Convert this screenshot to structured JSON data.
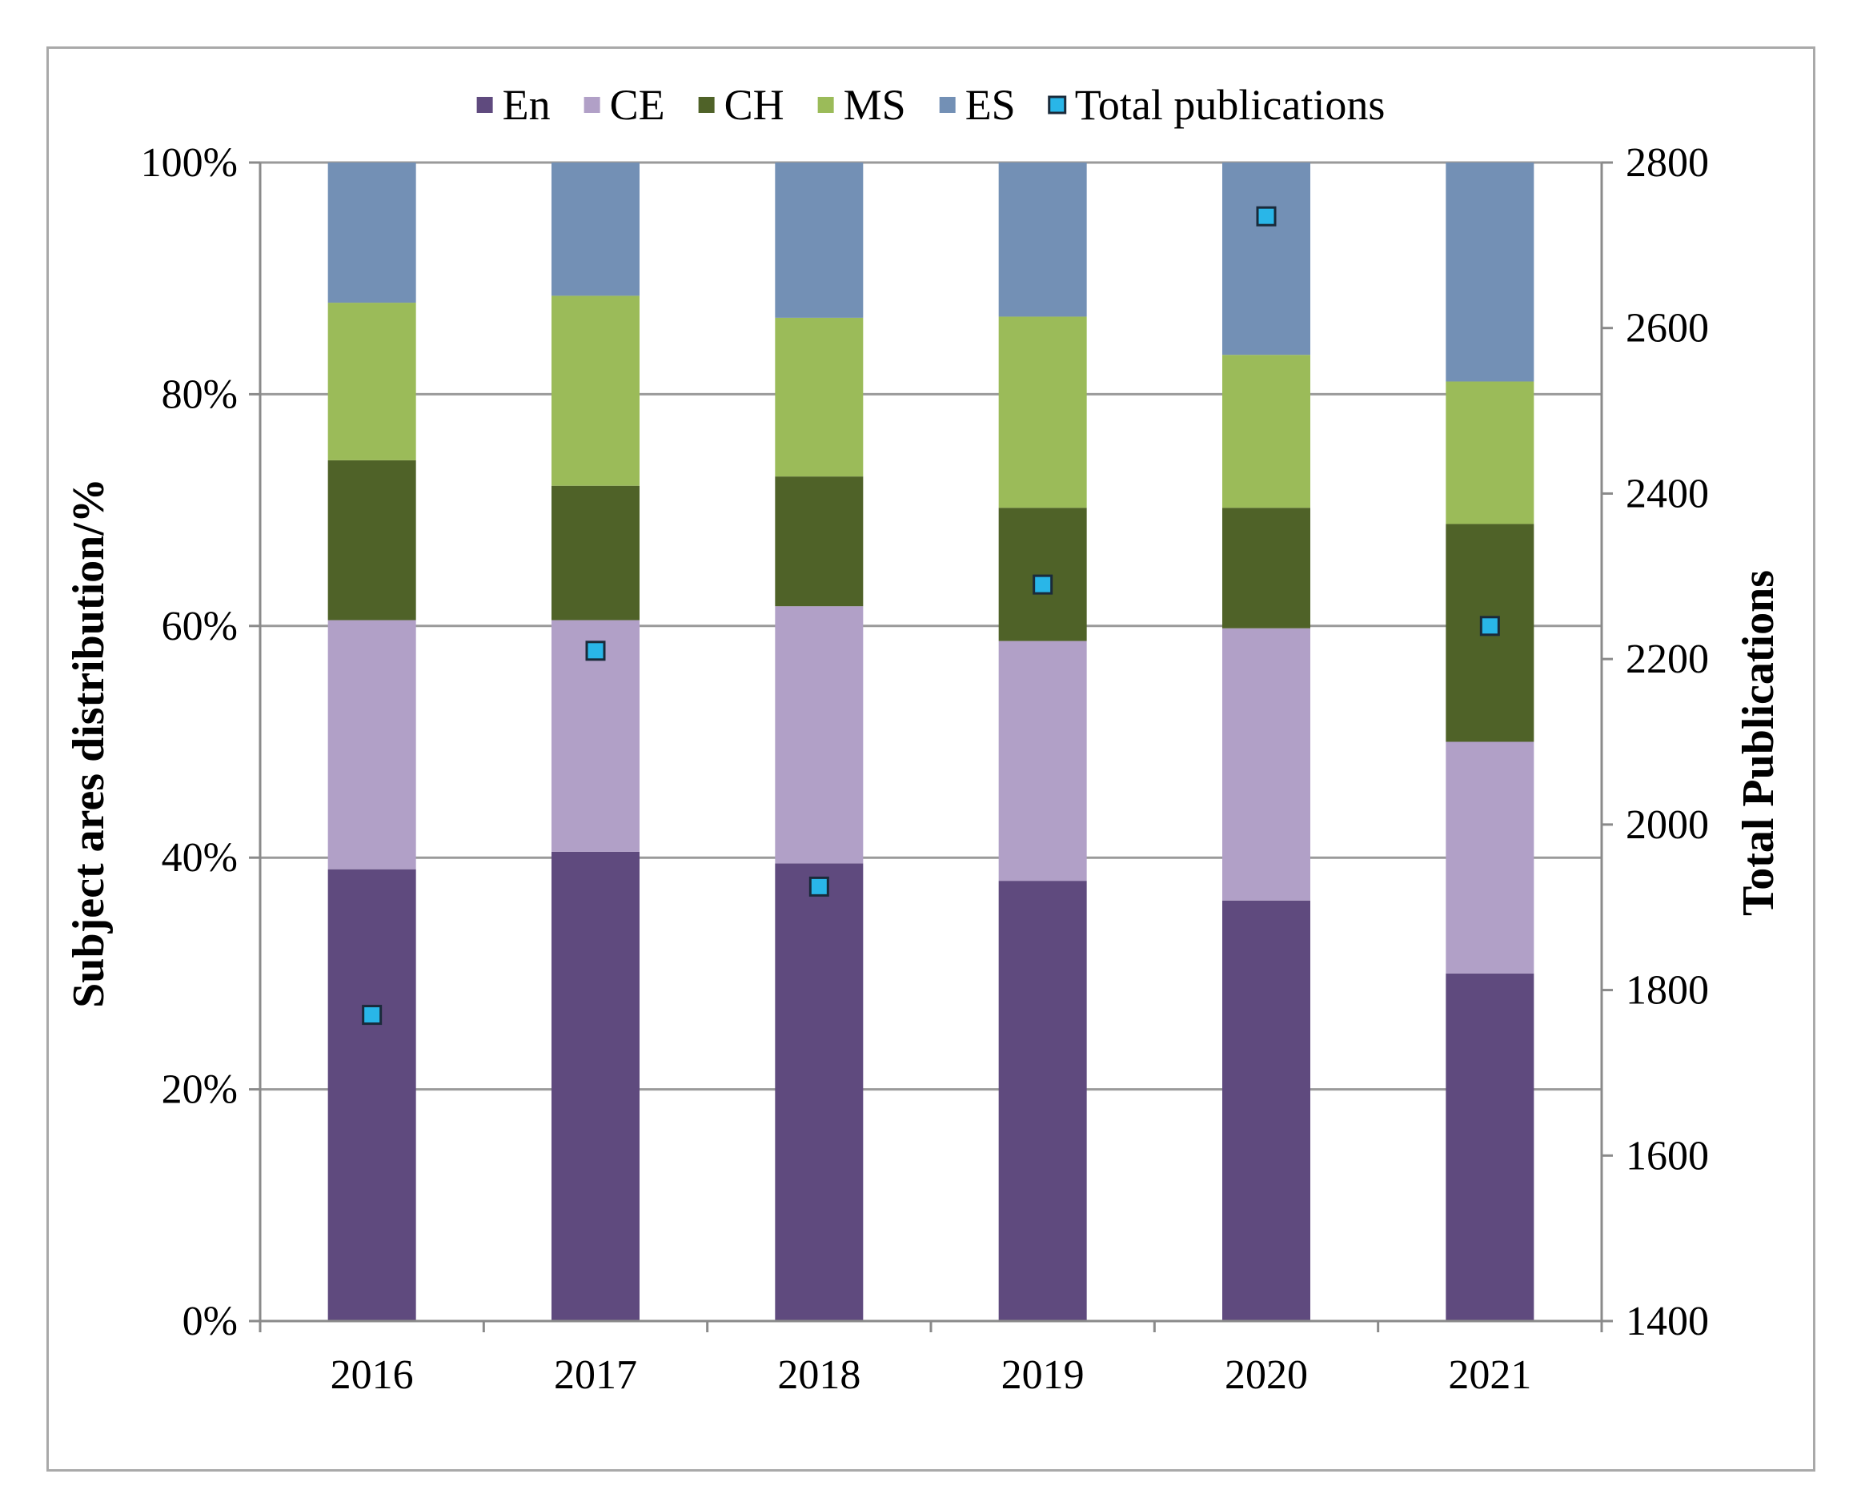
{
  "chart_data": {
    "type": "bar",
    "stacked": true,
    "normalized": true,
    "categories": [
      "2016",
      "2017",
      "2018",
      "2019",
      "2020",
      "2021"
    ],
    "series": [
      {
        "name": "En",
        "color": "#5f4a7e",
        "values": [
          39,
          40.5,
          39.5,
          38,
          36.3,
          30
        ]
      },
      {
        "name": "CE",
        "color": "#b1a0c7",
        "values": [
          21.5,
          20,
          22.2,
          20.7,
          23.5,
          20
        ]
      },
      {
        "name": "CH",
        "color": "#4f6228",
        "values": [
          13.8,
          11.6,
          11.2,
          11.5,
          10.4,
          18.8
        ]
      },
      {
        "name": "MS",
        "color": "#9bbb59",
        "values": [
          13.6,
          16.4,
          13.7,
          16.5,
          13.2,
          12.3
        ]
      },
      {
        "name": "ES",
        "color": "#7390b5",
        "values": [
          12.1,
          11.5,
          13.4,
          13.3,
          16.6,
          18.9
        ]
      }
    ],
    "secondary_series": {
      "name": "Total publications",
      "type": "scatter",
      "color": "#29b6e8",
      "values": [
        1770,
        2210,
        1925,
        2290,
        2735,
        2240
      ]
    },
    "y_left": {
      "label": "Subject ares distribution/%",
      "ticks": [
        "0%",
        "20%",
        "40%",
        "60%",
        "80%",
        "100%"
      ],
      "tick_values": [
        0,
        20,
        40,
        60,
        80,
        100
      ],
      "range": [
        0,
        100
      ]
    },
    "y_right": {
      "label": "Total Publications",
      "ticks": [
        "1400",
        "1600",
        "1800",
        "2000",
        "2200",
        "2400",
        "2600",
        "2800"
      ],
      "tick_values": [
        1400,
        1600,
        1800,
        2000,
        2200,
        2400,
        2600,
        2800
      ],
      "range": [
        1400,
        2800
      ]
    },
    "legend": {
      "placement": "top",
      "items": [
        "En",
        "CE",
        "CH",
        "MS",
        "ES",
        "Total publications"
      ]
    },
    "grid": true
  }
}
